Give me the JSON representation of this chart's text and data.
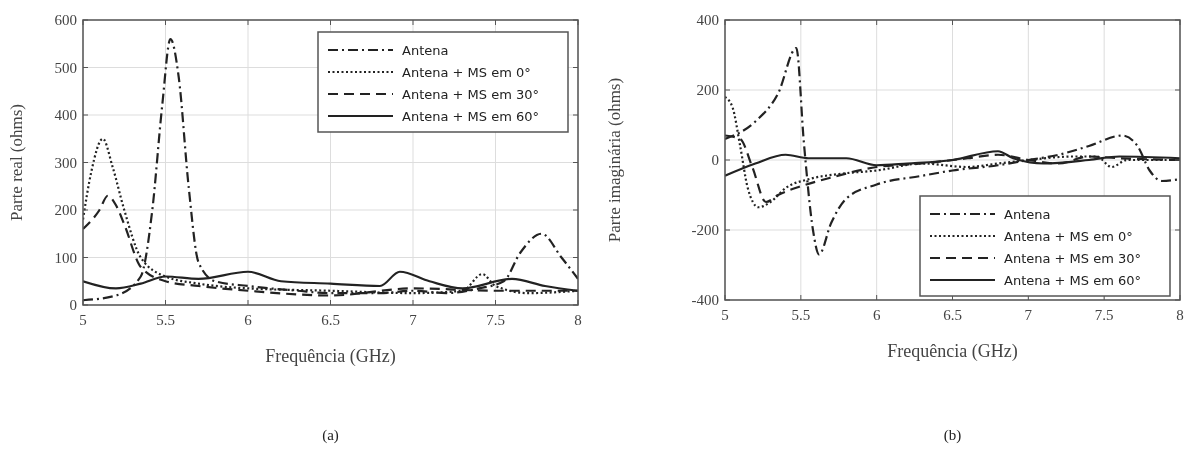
{
  "chart_data": [
    {
      "type": "line",
      "xlabel": "Frequência (GHz)",
      "ylabel": "Parte real (ohms)",
      "annotations": [
        "(a)"
      ],
      "xlim": [
        5,
        8
      ],
      "ylim": [
        0,
        600
      ],
      "xticks": [
        5,
        5.5,
        6,
        6.5,
        7,
        7.5,
        8
      ],
      "yticks": [
        0,
        100,
        200,
        300,
        400,
        500,
        600
      ],
      "grid": true,
      "legend": "top right",
      "series": [
        {
          "name": "Antena",
          "color": "#222222",
          "line_style": "dashdot",
          "x": [
            5,
            5.2,
            5.35,
            5.42,
            5.48,
            5.53,
            5.58,
            5.64,
            5.7,
            5.8,
            6,
            6.3,
            6.5,
            6.8,
            7,
            7.2,
            7.4,
            7.55,
            7.65,
            7.78,
            7.9,
            8
          ],
          "values": [
            10,
            20,
            60,
            200,
            420,
            560,
            480,
            250,
            90,
            50,
            40,
            30,
            25,
            25,
            30,
            25,
            35,
            50,
            110,
            150,
            100,
            55
          ]
        },
        {
          "name": "Antena + MS em 0°",
          "color": "#222222",
          "line_style": "dotted",
          "x": [
            5,
            5.05,
            5.12,
            5.18,
            5.25,
            5.35,
            5.5,
            5.7,
            6,
            6.5,
            7,
            7.3,
            7.42,
            7.5,
            7.7,
            8
          ],
          "values": [
            180,
            280,
            350,
            290,
            200,
            100,
            60,
            45,
            35,
            30,
            25,
            30,
            65,
            40,
            25,
            30
          ]
        },
        {
          "name": "Antena + MS em 30°",
          "color": "#222222",
          "line_style": "dashed",
          "x": [
            5,
            5.1,
            5.15,
            5.2,
            5.25,
            5.35,
            5.5,
            5.7,
            6,
            6.5,
            7,
            7.5,
            8
          ],
          "values": [
            160,
            200,
            230,
            210,
            170,
            80,
            50,
            40,
            30,
            20,
            35,
            30,
            30
          ]
        },
        {
          "name": "Antena + MS em 60°",
          "color": "#222222",
          "line_style": "solid",
          "x": [
            5,
            5.2,
            5.35,
            5.5,
            5.7,
            6,
            6.2,
            6.5,
            6.8,
            6.92,
            7.1,
            7.3,
            7.6,
            7.8,
            8
          ],
          "values": [
            50,
            35,
            45,
            60,
            55,
            70,
            50,
            45,
            40,
            70,
            50,
            35,
            55,
            40,
            30
          ]
        }
      ]
    },
    {
      "type": "line",
      "xlabel": "Frequência (GHz)",
      "ylabel": "Parte imaginária (ohms)",
      "annotations": [
        "(b)"
      ],
      "xlim": [
        5,
        8
      ],
      "ylim": [
        -400,
        400
      ],
      "xticks": [
        5,
        5.5,
        6,
        6.5,
        7,
        7.5,
        8
      ],
      "yticks": [
        -400,
        -200,
        0,
        200,
        400
      ],
      "grid": true,
      "legend": "bottom right",
      "series": [
        {
          "name": "Antena",
          "color": "#222222",
          "line_style": "dashdot",
          "x": [
            5,
            5.2,
            5.35,
            5.47,
            5.52,
            5.58,
            5.62,
            5.7,
            5.8,
            6,
            6.3,
            6.5,
            6.8,
            7,
            7.2,
            7.4,
            7.62,
            7.72,
            7.8,
            7.88,
            8
          ],
          "values": [
            60,
            110,
            190,
            320,
            50,
            -200,
            -270,
            -180,
            -110,
            -70,
            -45,
            -30,
            -15,
            0,
            15,
            40,
            70,
            40,
            -30,
            -60,
            -55
          ]
        },
        {
          "name": "Antena + MS em 0°",
          "color": "#222222",
          "line_style": "dotted",
          "x": [
            5,
            5.05,
            5.1,
            5.15,
            5.22,
            5.3,
            5.4,
            5.55,
            5.75,
            6,
            6.3,
            6.6,
            6.8,
            7,
            7.3,
            7.45,
            7.55,
            7.65,
            8
          ],
          "values": [
            180,
            150,
            40,
            -80,
            -135,
            -120,
            -80,
            -55,
            -40,
            -30,
            -10,
            -20,
            -10,
            0,
            10,
            10,
            -20,
            0,
            0
          ]
        },
        {
          "name": "Antena + MS em 30°",
          "color": "#222222",
          "line_style": "dashed",
          "x": [
            5,
            5.1,
            5.18,
            5.27,
            5.35,
            5.5,
            5.7,
            6,
            6.3,
            6.6,
            6.8,
            7,
            7.2,
            7.4,
            7.6,
            8
          ],
          "values": [
            70,
            60,
            -20,
            -120,
            -100,
            -75,
            -50,
            -20,
            -10,
            5,
            15,
            0,
            -10,
            10,
            5,
            0
          ]
        },
        {
          "name": "Antena + MS em 60°",
          "color": "#222222",
          "line_style": "solid",
          "x": [
            5,
            5.2,
            5.4,
            5.55,
            5.8,
            6,
            6.2,
            6.5,
            6.8,
            6.9,
            7.1,
            7.4,
            7.6,
            8
          ],
          "values": [
            -45,
            -10,
            15,
            5,
            5,
            -15,
            -10,
            0,
            25,
            5,
            -10,
            0,
            10,
            5
          ]
        }
      ]
    }
  ]
}
